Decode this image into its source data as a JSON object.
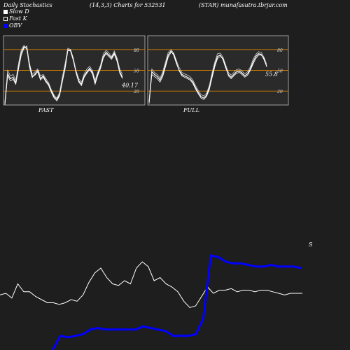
{
  "header": {
    "title": "Daily Stochastics",
    "params": "(14,3,3) Charts for 532531",
    "ticker": "(STAR) munafasutra.tbrjar.com"
  },
  "legend": [
    {
      "label": "Slow  D",
      "color": "#ffffff"
    },
    {
      "label": "Fast K",
      "color": "#ffffff"
    },
    {
      "label": "OBV",
      "color": "#0000ff"
    }
  ],
  "chart_data": [
    {
      "type": "line",
      "title": "FAST",
      "ylim": [
        0,
        100
      ],
      "levels": [
        20,
        50,
        80
      ],
      "level_color": "#cc7a00",
      "last_value_label": "40.17",
      "series": [
        {
          "values": [
            2,
            45,
            38,
            40,
            32,
            55,
            76,
            84,
            82,
            55,
            40,
            45,
            50,
            38,
            42,
            35,
            30,
            20,
            12,
            8,
            15,
            35,
            55,
            80,
            78,
            65,
            48,
            35,
            30,
            42,
            48,
            53,
            47,
            32,
            45,
            55,
            70,
            76,
            72,
            68,
            75,
            65,
            48,
            40
          ]
        },
        {
          "values": [
            5,
            50,
            42,
            44,
            36,
            60,
            80,
            86,
            80,
            60,
            44,
            48,
            52,
            42,
            44,
            38,
            32,
            22,
            14,
            10,
            18,
            40,
            60,
            82,
            80,
            68,
            50,
            38,
            33,
            45,
            52,
            56,
            50,
            36,
            48,
            58,
            74,
            79,
            75,
            70,
            78,
            68,
            52,
            44
          ]
        },
        {
          "values": [
            0,
            42,
            35,
            37,
            30,
            52,
            72,
            82,
            85,
            58,
            42,
            43,
            48,
            36,
            40,
            33,
            28,
            18,
            10,
            6,
            13,
            33,
            52,
            78,
            80,
            66,
            46,
            33,
            28,
            40,
            46,
            51,
            45,
            30,
            43,
            53,
            68,
            74,
            70,
            66,
            73,
            63,
            46,
            38
          ]
        }
      ]
    },
    {
      "type": "line",
      "title": "FULL",
      "ylim": [
        0,
        100
      ],
      "levels": [
        20,
        50,
        80
      ],
      "level_color": "#cc7a00",
      "last_value_label": "55.8",
      "series": [
        {
          "values": [
            4,
            48,
            44,
            41,
            36,
            44,
            58,
            72,
            78,
            72,
            60,
            50,
            44,
            42,
            40,
            38,
            33,
            25,
            18,
            12,
            10,
            14,
            25,
            42,
            58,
            70,
            72,
            66,
            54,
            44,
            40,
            44,
            48,
            49,
            46,
            42,
            45,
            52,
            62,
            70,
            74,
            73,
            66,
            56
          ]
        },
        {
          "values": [
            6,
            52,
            47,
            44,
            39,
            48,
            62,
            76,
            80,
            75,
            64,
            54,
            47,
            45,
            43,
            41,
            36,
            28,
            21,
            15,
            13,
            17,
            28,
            46,
            62,
            74,
            75,
            69,
            58,
            47,
            43,
            47,
            51,
            52,
            49,
            45,
            48,
            55,
            66,
            73,
            77,
            76,
            69,
            59
          ]
        },
        {
          "values": [
            2,
            44,
            41,
            38,
            33,
            41,
            55,
            69,
            76,
            74,
            62,
            49,
            42,
            40,
            38,
            36,
            31,
            23,
            16,
            10,
            8,
            12,
            22,
            39,
            55,
            67,
            70,
            68,
            56,
            42,
            38,
            42,
            46,
            47,
            44,
            40,
            43,
            50,
            59,
            67,
            72,
            72,
            68,
            55
          ]
        }
      ]
    },
    {
      "type": "line",
      "title": "",
      "last_value_label": "S",
      "series": [
        {
          "name": "Price",
          "color": "#ffffff",
          "values": [
            35,
            36,
            33,
            42,
            37,
            37,
            34,
            32,
            30,
            30,
            29,
            30,
            32,
            31,
            35,
            43,
            49,
            52,
            46,
            42,
            41,
            44,
            42,
            52,
            56,
            53,
            44,
            46,
            42,
            40,
            37,
            31,
            27,
            28,
            34,
            40,
            36,
            38,
            38,
            39,
            37,
            38,
            38,
            37,
            38,
            38,
            37,
            36,
            35,
            36,
            36,
            36
          ]
        },
        {
          "name": "OBV",
          "color": "#0000ff",
          "values": [
            null,
            null,
            null,
            null,
            null,
            null,
            null,
            null,
            null,
            0,
            9,
            8,
            9,
            10,
            13,
            14,
            13,
            13,
            13,
            13,
            13,
            15,
            14,
            13,
            12,
            9,
            9,
            9,
            10,
            20,
            60,
            59,
            56,
            55,
            55,
            54,
            53,
            53,
            54,
            53,
            53,
            53,
            52
          ]
        }
      ]
    }
  ]
}
